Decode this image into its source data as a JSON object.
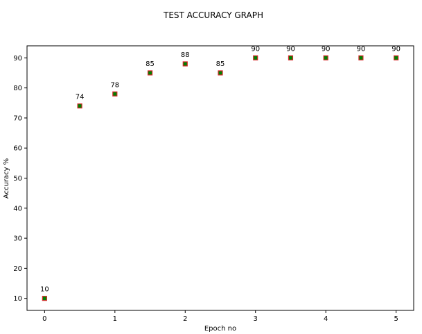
{
  "chart_data": {
    "type": "scatter",
    "title": "TEST ACCURACY GRAPH",
    "xlabel": "Epoch no",
    "ylabel": "Accuracy %",
    "x": [
      0,
      0.5,
      1,
      1.5,
      2,
      2.5,
      3,
      3.5,
      4,
      4.5,
      5
    ],
    "y": [
      10,
      74,
      78,
      85,
      88,
      85,
      90,
      90,
      90,
      90,
      90
    ],
    "data_labels": [
      "10",
      "74",
      "78",
      "85",
      "88",
      "85",
      "90",
      "90",
      "90",
      "90",
      "90"
    ],
    "xlim": [
      -0.25,
      5.25
    ],
    "ylim": [
      6,
      94
    ],
    "xticks": [
      0,
      1,
      2,
      3,
      4,
      5
    ],
    "xtick_labels": [
      "0",
      "1",
      "2",
      "3",
      "4",
      "5"
    ],
    "yticks": [
      10,
      20,
      30,
      40,
      50,
      60,
      70,
      80,
      90
    ],
    "ytick_labels": [
      "10",
      "20",
      "30",
      "40",
      "50",
      "60",
      "70",
      "80",
      "90"
    ],
    "grid": false,
    "marker": "square",
    "marker_fill_color": "#008000",
    "marker_edge_color": "#d62728"
  }
}
